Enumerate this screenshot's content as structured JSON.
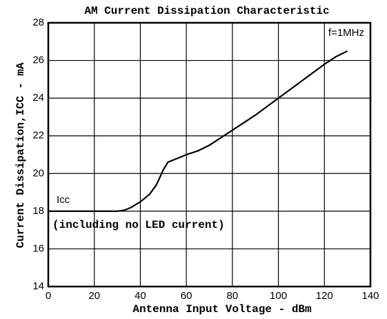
{
  "chart_data": {
    "type": "line",
    "title": "AM Current Dissipation Characteristic",
    "xlabel": "Antenna Input Voltage - dBm",
    "ylabel": "Current Dissipation,ICC - mA",
    "annotations": [
      "f=1MHz",
      "Icc",
      "(including no LED current)"
    ],
    "x": [
      0,
      10,
      20,
      30,
      33,
      36,
      40,
      44,
      47,
      50,
      52,
      56,
      60,
      65,
      70,
      80,
      90,
      100,
      110,
      120,
      125,
      130
    ],
    "series": [
      {
        "name": "Icc",
        "color": "#000000",
        "values": [
          18,
          18,
          18,
          18,
          18.05,
          18.2,
          18.5,
          18.9,
          19.4,
          20.2,
          20.6,
          20.8,
          21.0,
          21.2,
          21.5,
          22.3,
          23.1,
          24.0,
          24.9,
          25.8,
          26.2,
          26.5
        ]
      }
    ],
    "xlim": [
      0,
      140
    ],
    "xticks": [
      0,
      20,
      40,
      60,
      80,
      100,
      120,
      140
    ],
    "ylim": [
      14,
      28
    ],
    "yticks": [
      14,
      16,
      18,
      20,
      22,
      24,
      26,
      28
    ],
    "grid": true
  }
}
